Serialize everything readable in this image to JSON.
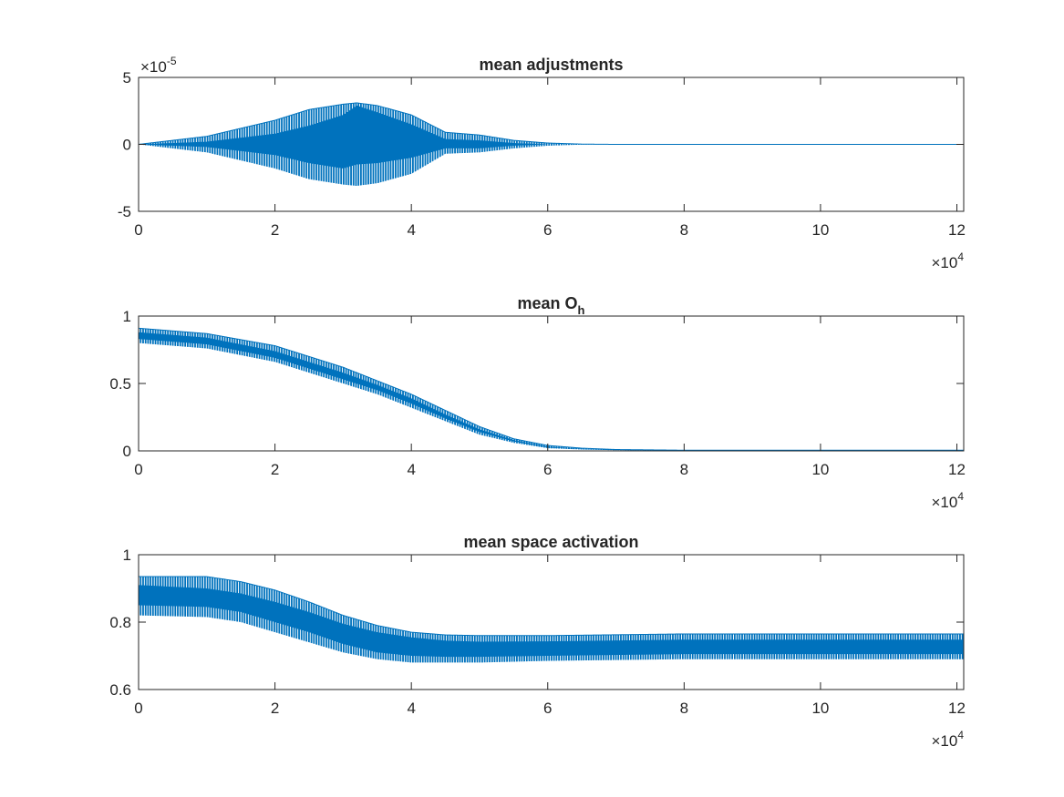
{
  "series_color": "#0072BD",
  "chart_data": [
    {
      "type": "line",
      "title": "mean adjustments",
      "title_sub": "",
      "xlabel": "",
      "ylabel": "",
      "xlim": [
        0,
        121000
      ],
      "ylim": [
        -5e-05,
        5e-05
      ],
      "grid": false,
      "x_exponent": {
        "base": "×10",
        "power": "4"
      },
      "y_exponent": {
        "base": "×10",
        "power": "-5"
      },
      "x_ticks": [
        0,
        20000,
        40000,
        60000,
        80000,
        100000,
        120000
      ],
      "x_tick_labels": [
        "0",
        "2",
        "4",
        "6",
        "8",
        "10",
        "12"
      ],
      "y_ticks": [
        -5e-05,
        0,
        5e-05
      ],
      "y_tick_labels": [
        "-5",
        "0",
        "5"
      ],
      "band": {
        "x": [
          0,
          10000,
          20000,
          25000,
          30000,
          32000,
          35000,
          40000,
          45000,
          50000,
          55000,
          60000,
          65000,
          70000,
          121000
        ],
        "upper": [
          0,
          6e-06,
          1.8e-05,
          2.6e-05,
          3e-05,
          3.1e-05,
          2.9e-05,
          2.2e-05,
          9e-06,
          7e-06,
          3e-06,
          1e-06,
          2e-07,
          0,
          0
        ],
        "lower": [
          0,
          -6e-06,
          -1.8e-05,
          -2.6e-05,
          -3e-05,
          -3.1e-05,
          -2.9e-05,
          -2.2e-05,
          -7e-06,
          -6e-06,
          -3e-06,
          -1e-06,
          -2e-07,
          0,
          0
        ],
        "inner_upper": [
          0,
          2e-06,
          8e-06,
          1.4e-05,
          2.2e-05,
          2.9e-05,
          2.4e-05,
          1.5e-05,
          4e-06,
          3e-06,
          1e-06,
          0,
          0,
          0,
          0
        ],
        "inner_lower": [
          0,
          -2e-06,
          -8e-06,
          -1.4e-05,
          -1.8e-05,
          -1.5e-05,
          -1.4e-05,
          -1e-05,
          -3e-06,
          -3e-06,
          -1e-06,
          0,
          0,
          0,
          0
        ]
      }
    },
    {
      "type": "line",
      "title": "mean O",
      "title_sub": "h",
      "xlabel": "",
      "ylabel": "",
      "xlim": [
        0,
        121000
      ],
      "ylim": [
        0,
        1
      ],
      "grid": false,
      "x_exponent": {
        "base": "×10",
        "power": "4"
      },
      "y_exponent": null,
      "x_ticks": [
        0,
        20000,
        40000,
        60000,
        80000,
        100000,
        120000
      ],
      "x_tick_labels": [
        "0",
        "2",
        "4",
        "6",
        "8",
        "10",
        "12"
      ],
      "y_ticks": [
        0,
        0.5,
        1
      ],
      "y_tick_labels": [
        "0",
        "0.5",
        "1"
      ],
      "band": {
        "x": [
          0,
          10000,
          20000,
          30000,
          35000,
          40000,
          45000,
          50000,
          55000,
          60000,
          65000,
          70000,
          80000,
          121000
        ],
        "upper": [
          0.91,
          0.87,
          0.78,
          0.62,
          0.52,
          0.42,
          0.3,
          0.18,
          0.09,
          0.04,
          0.02,
          0.01,
          0.005,
          0.005
        ],
        "lower": [
          0.8,
          0.76,
          0.66,
          0.5,
          0.42,
          0.32,
          0.22,
          0.12,
          0.06,
          0.02,
          0.01,
          0.005,
          0.002,
          0.002
        ],
        "inner_upper": [
          0.88,
          0.84,
          0.74,
          0.58,
          0.49,
          0.39,
          0.27,
          0.16,
          0.08,
          0.03,
          0.015,
          0.008,
          0.004,
          0.004
        ],
        "inner_lower": [
          0.83,
          0.79,
          0.69,
          0.53,
          0.45,
          0.35,
          0.24,
          0.14,
          0.07,
          0.025,
          0.012,
          0.006,
          0.003,
          0.003
        ]
      }
    },
    {
      "type": "line",
      "title": "mean space activation",
      "title_sub": "",
      "xlabel": "",
      "ylabel": "",
      "xlim": [
        0,
        121000
      ],
      "ylim": [
        0.6,
        1
      ],
      "grid": false,
      "x_exponent": {
        "base": "×10",
        "power": "4"
      },
      "y_exponent": null,
      "x_ticks": [
        0,
        20000,
        40000,
        60000,
        80000,
        100000,
        120000
      ],
      "x_tick_labels": [
        "0",
        "2",
        "4",
        "6",
        "8",
        "10",
        "12"
      ],
      "y_ticks": [
        0.6,
        0.8,
        1
      ],
      "y_tick_labels": [
        "0.6",
        "0.8",
        "1"
      ],
      "band": {
        "x": [
          0,
          10000,
          15000,
          20000,
          25000,
          30000,
          35000,
          40000,
          45000,
          50000,
          60000,
          80000,
          121000
        ],
        "upper": [
          0.935,
          0.935,
          0.92,
          0.895,
          0.86,
          0.82,
          0.79,
          0.77,
          0.762,
          0.76,
          0.76,
          0.765,
          0.765
        ],
        "lower": [
          0.82,
          0.815,
          0.8,
          0.77,
          0.74,
          0.71,
          0.69,
          0.68,
          0.68,
          0.68,
          0.685,
          0.69,
          0.69
        ],
        "inner_upper": [
          0.91,
          0.9,
          0.885,
          0.86,
          0.83,
          0.795,
          0.77,
          0.755,
          0.745,
          0.742,
          0.743,
          0.748,
          0.748
        ],
        "inner_lower": [
          0.85,
          0.845,
          0.83,
          0.8,
          0.77,
          0.735,
          0.71,
          0.7,
          0.697,
          0.697,
          0.7,
          0.705,
          0.705
        ]
      }
    }
  ]
}
